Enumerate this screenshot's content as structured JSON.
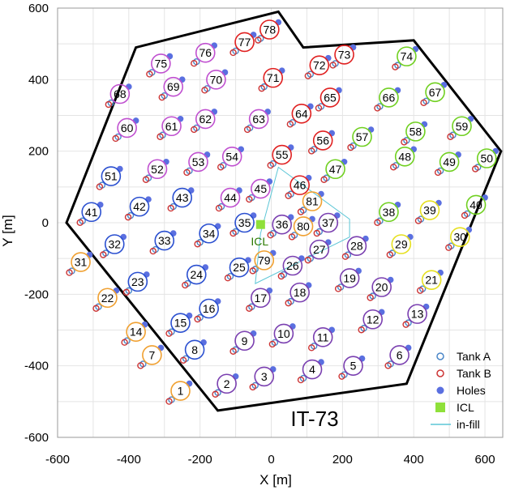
{
  "chart_data": {
    "type": "scatter",
    "title": "",
    "xlabel": "X [m]",
    "ylabel": "Y [m]",
    "xlim": [
      -600,
      650
    ],
    "ylim": [
      -600,
      600
    ],
    "xticks": [
      "-600",
      "-400",
      "-200",
      "0",
      "200",
      "400",
      "600"
    ],
    "xtick_values": [
      -600,
      -400,
      -200,
      0,
      200,
      400,
      600
    ],
    "yticks": [
      "600",
      "400",
      "200",
      "0",
      "-200",
      "-400",
      "-600"
    ],
    "ytick_values": [
      600,
      400,
      200,
      0,
      -200,
      -400,
      -600
    ],
    "annotation": "IT-73",
    "icl_label": "ICL",
    "legend": {
      "position": "bottom-right",
      "entries": [
        "Tank A",
        "Tank B",
        "Holes",
        "ICL",
        "in-fill"
      ]
    },
    "colors": {
      "tank_a": "#4a86c8",
      "tank_b": "#cc3333",
      "holes": "#5a6fe0",
      "icl": "#8fe03a",
      "infill": "#5cc6d6",
      "boundary": "#000000",
      "orange": "#f0a030",
      "blue": "#2a4fd0",
      "purple": "#7a3fb0",
      "magenta": "#c050d0",
      "red": "#e02020",
      "green": "#70d020",
      "yellow": "#e6e020"
    },
    "boundary": [
      [
        -575,
        0
      ],
      [
        -380,
        490
      ],
      [
        20,
        590
      ],
      [
        90,
        490
      ],
      [
        400,
        510
      ],
      [
        645,
        200
      ],
      [
        380,
        -450
      ],
      [
        -150,
        -525
      ]
    ],
    "infill_polygon": [
      [
        20,
        155
      ],
      [
        220,
        10
      ],
      [
        220,
        -40
      ],
      [
        -45,
        -170
      ],
      [
        -30,
        -30
      ]
    ],
    "icl": [
      -30,
      -5
    ],
    "stations": [
      {
        "id": "1",
        "x": -255,
        "y": -470,
        "color": "orange"
      },
      {
        "id": "2",
        "x": -125,
        "y": -450,
        "color": "purple"
      },
      {
        "id": "3",
        "x": -20,
        "y": -430,
        "color": "purple"
      },
      {
        "id": "4",
        "x": 115,
        "y": -410,
        "color": "purple"
      },
      {
        "id": "5",
        "x": 230,
        "y": -400,
        "color": "purple"
      },
      {
        "id": "6",
        "x": 360,
        "y": -370,
        "color": "purple"
      },
      {
        "id": "7",
        "x": -335,
        "y": -370,
        "color": "orange"
      },
      {
        "id": "8",
        "x": -215,
        "y": -355,
        "color": "blue"
      },
      {
        "id": "9",
        "x": -75,
        "y": -330,
        "color": "purple"
      },
      {
        "id": "10",
        "x": 35,
        "y": -310,
        "color": "purple"
      },
      {
        "id": "11",
        "x": 145,
        "y": -320,
        "color": "purple"
      },
      {
        "id": "12",
        "x": 285,
        "y": -270,
        "color": "purple"
      },
      {
        "id": "13",
        "x": 410,
        "y": -255,
        "color": "purple"
      },
      {
        "id": "14",
        "x": -380,
        "y": -305,
        "color": "orange"
      },
      {
        "id": "15",
        "x": -255,
        "y": -280,
        "color": "blue"
      },
      {
        "id": "16",
        "x": -175,
        "y": -240,
        "color": "blue"
      },
      {
        "id": "17",
        "x": -30,
        "y": -210,
        "color": "purple"
      },
      {
        "id": "18",
        "x": 80,
        "y": -195,
        "color": "purple"
      },
      {
        "id": "19",
        "x": 220,
        "y": -155,
        "color": "purple"
      },
      {
        "id": "20",
        "x": 310,
        "y": -180,
        "color": "purple"
      },
      {
        "id": "21",
        "x": 450,
        "y": -160,
        "color": "yellow"
      },
      {
        "id": "22",
        "x": -460,
        "y": -210,
        "color": "orange"
      },
      {
        "id": "23",
        "x": -375,
        "y": -165,
        "color": "blue"
      },
      {
        "id": "24",
        "x": -210,
        "y": -145,
        "color": "blue"
      },
      {
        "id": "25",
        "x": -90,
        "y": -125,
        "color": "blue"
      },
      {
        "id": "26",
        "x": 60,
        "y": -120,
        "color": "purple"
      },
      {
        "id": "27",
        "x": 135,
        "y": -75,
        "color": "purple"
      },
      {
        "id": "28",
        "x": 240,
        "y": -65,
        "color": "purple"
      },
      {
        "id": "29",
        "x": 365,
        "y": -60,
        "color": "yellow"
      },
      {
        "id": "30",
        "x": 530,
        "y": -40,
        "color": "yellow"
      },
      {
        "id": "31",
        "x": -535,
        "y": -110,
        "color": "orange"
      },
      {
        "id": "32",
        "x": -440,
        "y": -60,
        "color": "blue"
      },
      {
        "id": "33",
        "x": -300,
        "y": -50,
        "color": "blue"
      },
      {
        "id": "34",
        "x": -175,
        "y": -30,
        "color": "blue"
      },
      {
        "id": "35",
        "x": -75,
        "y": 0,
        "color": "blue"
      },
      {
        "id": "36",
        "x": 30,
        "y": -5,
        "color": "purple"
      },
      {
        "id": "37",
        "x": 160,
        "y": 0,
        "color": "purple"
      },
      {
        "id": "38",
        "x": 330,
        "y": 30,
        "color": "green"
      },
      {
        "id": "39",
        "x": 445,
        "y": 35,
        "color": "yellow"
      },
      {
        "id": "40",
        "x": 575,
        "y": 50,
        "color": "green"
      },
      {
        "id": "41",
        "x": -505,
        "y": 30,
        "color": "blue"
      },
      {
        "id": "42",
        "x": -370,
        "y": 45,
        "color": "blue"
      },
      {
        "id": "43",
        "x": -250,
        "y": 70,
        "color": "blue"
      },
      {
        "id": "44",
        "x": -115,
        "y": 70,
        "color": "magenta"
      },
      {
        "id": "45",
        "x": -30,
        "y": 95,
        "color": "magenta"
      },
      {
        "id": "46",
        "x": 80,
        "y": 105,
        "color": "red"
      },
      {
        "id": "47",
        "x": 180,
        "y": 150,
        "color": "green"
      },
      {
        "id": "48",
        "x": 375,
        "y": 185,
        "color": "green"
      },
      {
        "id": "49",
        "x": 500,
        "y": 170,
        "color": "green"
      },
      {
        "id": "50",
        "x": 605,
        "y": 180,
        "color": "green"
      },
      {
        "id": "51",
        "x": -450,
        "y": 130,
        "color": "blue"
      },
      {
        "id": "52",
        "x": -320,
        "y": 150,
        "color": "magenta"
      },
      {
        "id": "53",
        "x": -205,
        "y": 170,
        "color": "magenta"
      },
      {
        "id": "54",
        "x": -110,
        "y": 185,
        "color": "magenta"
      },
      {
        "id": "55",
        "x": 30,
        "y": 190,
        "color": "red"
      },
      {
        "id": "56",
        "x": 145,
        "y": 230,
        "color": "red"
      },
      {
        "id": "57",
        "x": 255,
        "y": 240,
        "color": "green"
      },
      {
        "id": "58",
        "x": 405,
        "y": 255,
        "color": "green"
      },
      {
        "id": "59",
        "x": 535,
        "y": 270,
        "color": "green"
      },
      {
        "id": "60",
        "x": -405,
        "y": 265,
        "color": "magenta"
      },
      {
        "id": "61",
        "x": -280,
        "y": 270,
        "color": "magenta"
      },
      {
        "id": "62",
        "x": -185,
        "y": 290,
        "color": "magenta"
      },
      {
        "id": "63",
        "x": -35,
        "y": 290,
        "color": "magenta"
      },
      {
        "id": "64",
        "x": 85,
        "y": 305,
        "color": "red"
      },
      {
        "id": "65",
        "x": 165,
        "y": 350,
        "color": "red"
      },
      {
        "id": "66",
        "x": 330,
        "y": 350,
        "color": "green"
      },
      {
        "id": "67",
        "x": 460,
        "y": 365,
        "color": "green"
      },
      {
        "id": "68",
        "x": -425,
        "y": 360,
        "color": "magenta"
      },
      {
        "id": "69",
        "x": -275,
        "y": 380,
        "color": "magenta"
      },
      {
        "id": "70",
        "x": -155,
        "y": 400,
        "color": "magenta"
      },
      {
        "id": "71",
        "x": 5,
        "y": 405,
        "color": "red"
      },
      {
        "id": "72",
        "x": 135,
        "y": 440,
        "color": "red"
      },
      {
        "id": "73",
        "x": 205,
        "y": 470,
        "color": "red"
      },
      {
        "id": "74",
        "x": 380,
        "y": 465,
        "color": "green"
      },
      {
        "id": "75",
        "x": -310,
        "y": 445,
        "color": "magenta"
      },
      {
        "id": "76",
        "x": -185,
        "y": 475,
        "color": "magenta"
      },
      {
        "id": "77",
        "x": -75,
        "y": 505,
        "color": "red"
      },
      {
        "id": "78",
        "x": -5,
        "y": 540,
        "color": "red"
      },
      {
        "id": "79",
        "x": -20,
        "y": -105,
        "color": "orange"
      },
      {
        "id": "80",
        "x": 90,
        "y": -10,
        "color": "orange"
      },
      {
        "id": "81",
        "x": 115,
        "y": 60,
        "color": "orange"
      }
    ]
  }
}
